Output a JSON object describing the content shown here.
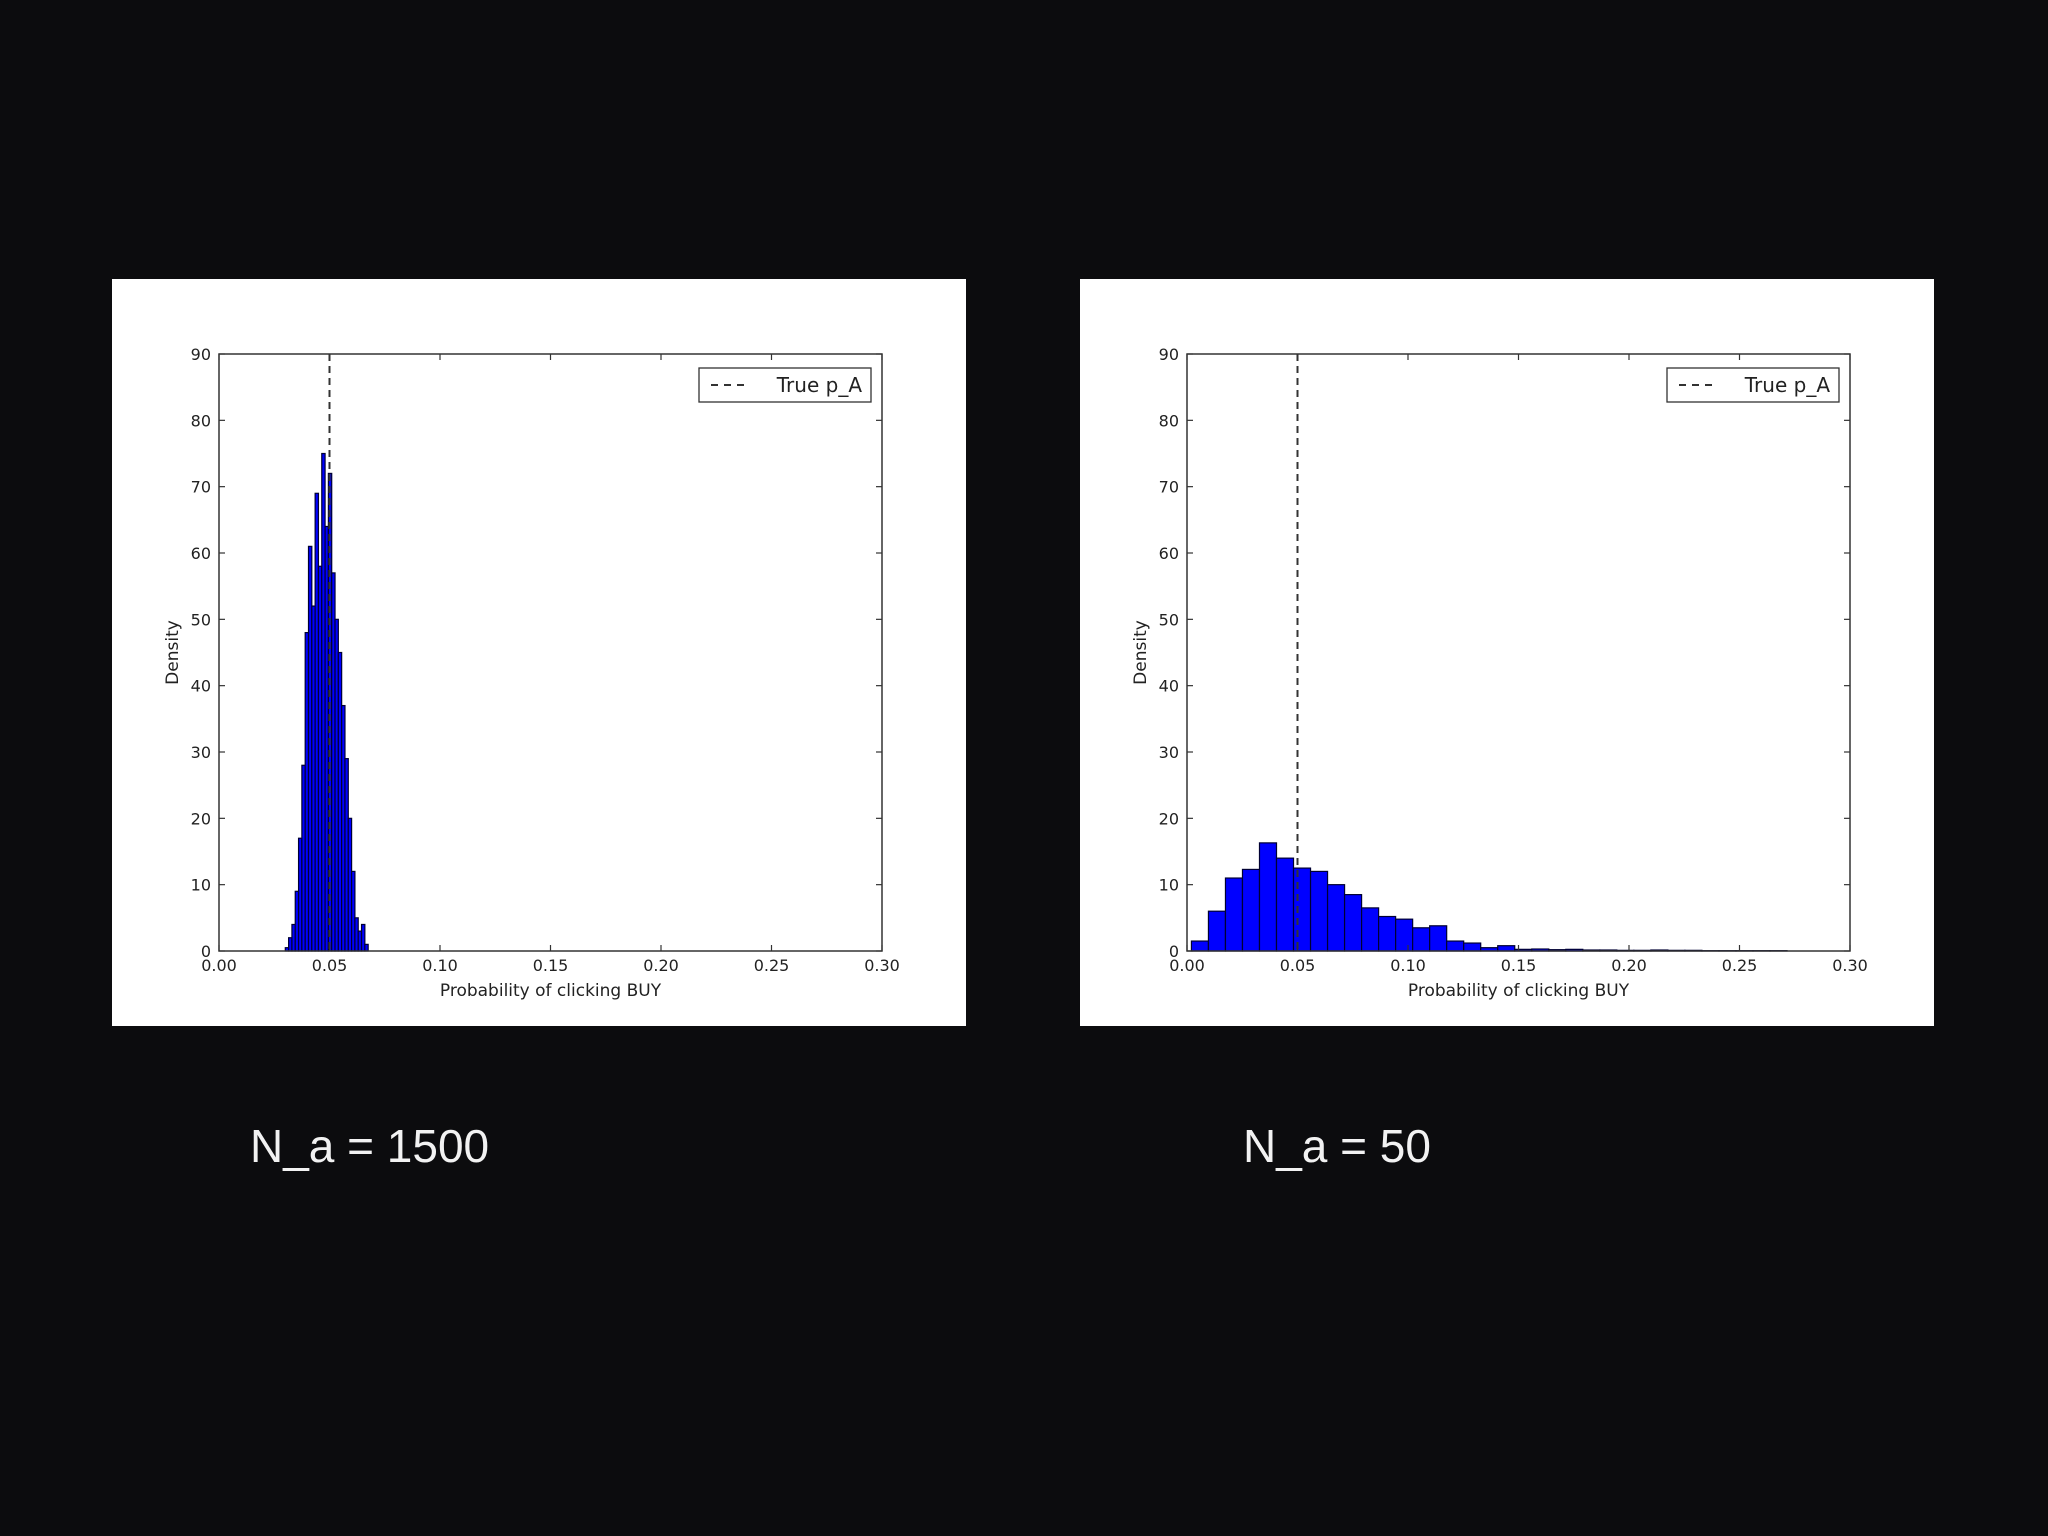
{
  "slide": {
    "left_caption": "N_a = 1500",
    "right_caption": "N_a = 50"
  },
  "colors": {
    "background": "#0c0c0e",
    "panel": "#ffffff",
    "bar_fill": "#0000ff",
    "bar_edge": "#000033",
    "reference_line": "#333333"
  },
  "chart_data": [
    {
      "type": "bar",
      "title": "",
      "xlabel": "Probability of clicking BUY",
      "ylabel": "Density",
      "xlim": [
        0,
        0.3
      ],
      "ylim": [
        0,
        90
      ],
      "xticks": [
        "0.00",
        "0.05",
        "0.10",
        "0.15",
        "0.20",
        "0.25",
        "0.30"
      ],
      "yticks": [
        "0",
        "10",
        "20",
        "30",
        "40",
        "50",
        "60",
        "70",
        "80",
        "90"
      ],
      "grid": false,
      "legend": {
        "label": "True p_A",
        "position": "top-right"
      },
      "reference_line": {
        "label": "True p_A",
        "x": 0.05,
        "style": "dashed"
      },
      "histogram": {
        "bin_start": 0.03,
        "bin_width": 0.0015,
        "densities": [
          0.5,
          2,
          4,
          9,
          17,
          28,
          48,
          61,
          52,
          69,
          58,
          75,
          64,
          72,
          57,
          50,
          45,
          37,
          29,
          20,
          12,
          5,
          3,
          4,
          1
        ]
      }
    },
    {
      "type": "bar",
      "title": "",
      "xlabel": "Probability of clicking BUY",
      "ylabel": "Density",
      "xlim": [
        0,
        0.3
      ],
      "ylim": [
        0,
        90
      ],
      "xticks": [
        "0.00",
        "0.05",
        "0.10",
        "0.15",
        "0.20",
        "0.25",
        "0.30"
      ],
      "yticks": [
        "0",
        "10",
        "20",
        "30",
        "40",
        "50",
        "60",
        "70",
        "80",
        "90"
      ],
      "grid": false,
      "legend": {
        "label": "True p_A",
        "position": "top-right"
      },
      "reference_line": {
        "label": "True p_A",
        "x": 0.05,
        "style": "dashed"
      },
      "histogram": {
        "bin_start": 0.002,
        "bin_width": 0.0077,
        "densities": [
          1.5,
          6,
          11,
          12.3,
          16.3,
          14,
          12.5,
          12,
          10,
          8.5,
          6.5,
          5.2,
          4.8,
          3.5,
          3.8,
          1.5,
          1.2,
          0.5,
          0.8,
          0.25,
          0.3,
          0.2,
          0.25,
          0.15,
          0.15,
          0.1,
          0.1,
          0.15,
          0.1,
          0.1,
          0.05,
          0.05,
          0.05,
          0.05,
          0.05
        ]
      }
    }
  ]
}
